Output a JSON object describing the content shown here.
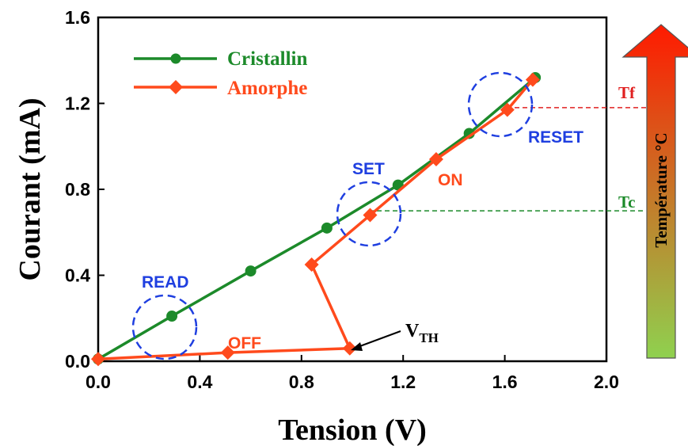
{
  "chart_data": {
    "type": "line",
    "xlabel": "Tension (V)",
    "ylabel": "Courant (mA)",
    "xlim": [
      0.0,
      2.0
    ],
    "ylim": [
      0.0,
      1.6
    ],
    "x_ticks": [
      "0.0",
      "0.4",
      "0.8",
      "1.2",
      "1.6",
      "2.0"
    ],
    "y_ticks": [
      "0.0",
      "0.4",
      "0.8",
      "1.2",
      "1.6"
    ],
    "legend_position": "top-left",
    "series": [
      {
        "name": "Cristallin",
        "color": "#1c8a2a",
        "marker": "circle",
        "x": [
          0.0,
          0.29,
          0.6,
          0.9,
          1.18,
          1.46,
          1.72
        ],
        "y": [
          0.01,
          0.21,
          0.42,
          0.62,
          0.82,
          1.06,
          1.32
        ]
      },
      {
        "name": "Amorphe",
        "color": "#ff4a1c",
        "marker": "diamond",
        "x": [
          0.0,
          0.51,
          0.99,
          0.84,
          1.07,
          1.33,
          1.61,
          1.71
        ],
        "y": [
          0.01,
          0.04,
          0.06,
          0.45,
          0.68,
          0.94,
          1.17,
          1.31
        ]
      }
    ],
    "annotations": {
      "read": "READ",
      "off": "OFF",
      "set": "SET",
      "on": "ON",
      "reset": "RESET",
      "vth_main": "V",
      "vth_sub": "TH"
    },
    "temperature_bar": {
      "label": "Température °C",
      "tf_label": "Tf",
      "tc_label": "Tc",
      "tf_level": 1.18,
      "tc_level": 0.7,
      "top_color": "#ff1a00",
      "bottom_color": "#8fd14f",
      "tf_color": "#e02020",
      "tc_color": "#1c8a2a"
    },
    "circle_color": "#1f3fe0"
  }
}
